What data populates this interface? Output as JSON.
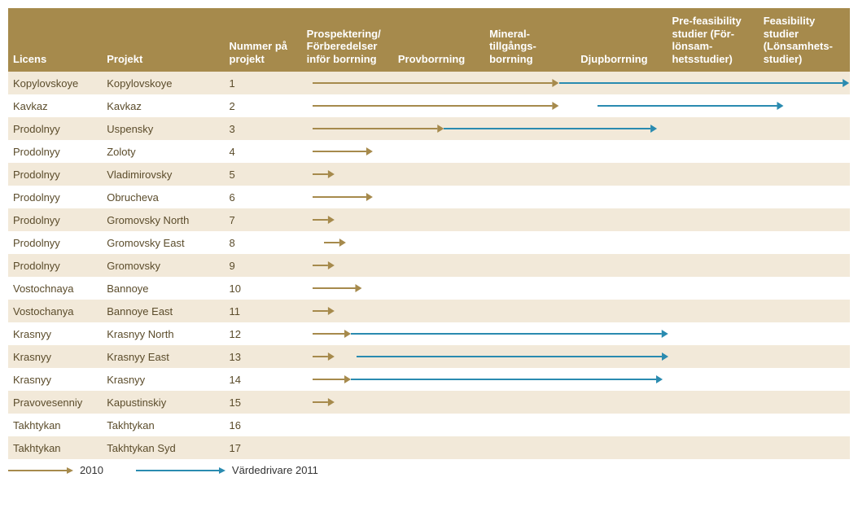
{
  "colors": {
    "header_bg": "#a68a4c",
    "header_text": "#ffffff",
    "row_even_bg": "#f2e9d9",
    "row_odd_bg": "#ffffff",
    "text": "#5b4c2b",
    "arrow_2010": "#a68a4c",
    "arrow_2011": "#2a8bb0"
  },
  "arrow_style": {
    "stroke_width": 2,
    "head_len": 8,
    "head_w": 5
  },
  "col_widths": {
    "licens": 115,
    "projekt": 150,
    "num": 95,
    "phase": 112
  },
  "phases_count": 6,
  "headers": {
    "licens": "Licens",
    "projekt": "Projekt",
    "num": "Nummer på projekt",
    "phases": [
      "Prospektering/\nFörberedelser inför borrning",
      "Provborrning",
      "Mineral-\ntillgångs-\nborrning",
      "Djupborrning",
      "Pre-feasibility studier\n(För-lönsam-\nhetsstudier)",
      "Feasibility studier\n(Lönsamhets-\nstudier)"
    ]
  },
  "legend": {
    "y2010": "2010",
    "y2011": "Värdedrivare 2011"
  },
  "rows": [
    {
      "licens": "Kopylovskoye",
      "projekt": "Kopylovskoye",
      "num": "1",
      "arrows": [
        {
          "year": "2010",
          "start": 0.02,
          "end": 0.47
        },
        {
          "year": "2011",
          "start": 0.47,
          "end": 1.0
        }
      ]
    },
    {
      "licens": "Kavkaz",
      "projekt": "Kavkaz",
      "num": "2",
      "arrows": [
        {
          "year": "2010",
          "start": 0.02,
          "end": 0.47
        },
        {
          "year": "2011",
          "start": 0.54,
          "end": 0.88
        }
      ]
    },
    {
      "licens": "Prodolnyy",
      "projekt": "Uspensky",
      "num": "3",
      "arrows": [
        {
          "year": "2010",
          "start": 0.02,
          "end": 0.26
        },
        {
          "year": "2011",
          "start": 0.26,
          "end": 0.65
        }
      ]
    },
    {
      "licens": "Prodolnyy",
      "projekt": "Zoloty",
      "num": "4",
      "arrows": [
        {
          "year": "2010",
          "start": 0.02,
          "end": 0.13
        }
      ]
    },
    {
      "licens": "Prodolnyy",
      "projekt": "Vladimirovsky",
      "num": "5",
      "arrows": [
        {
          "year": "2010",
          "start": 0.02,
          "end": 0.06
        }
      ]
    },
    {
      "licens": "Prodolnyy",
      "projekt": "Obrucheva",
      "num": "6",
      "arrows": [
        {
          "year": "2010",
          "start": 0.02,
          "end": 0.13
        }
      ]
    },
    {
      "licens": "Prodolnyy",
      "projekt": "Gromovsky North",
      "num": "7",
      "arrows": [
        {
          "year": "2010",
          "start": 0.02,
          "end": 0.06
        }
      ]
    },
    {
      "licens": "Prodolnyy",
      "projekt": "Gromovsky East",
      "num": "8",
      "arrows": [
        {
          "year": "2010",
          "start": 0.04,
          "end": 0.08
        }
      ]
    },
    {
      "licens": "Prodolnyy",
      "projekt": "Gromovsky",
      "num": "9",
      "arrows": [
        {
          "year": "2010",
          "start": 0.02,
          "end": 0.06
        }
      ]
    },
    {
      "licens": "Vostochnaya",
      "projekt": "Bannoye",
      "num": "10",
      "arrows": [
        {
          "year": "2010",
          "start": 0.02,
          "end": 0.11
        }
      ]
    },
    {
      "licens": "Vostochanya",
      "projekt": "Bannoye East",
      "num": "11",
      "arrows": [
        {
          "year": "2010",
          "start": 0.02,
          "end": 0.06
        }
      ]
    },
    {
      "licens": "Krasnyy",
      "projekt": "Krasnyy North",
      "num": "12",
      "arrows": [
        {
          "year": "2010",
          "start": 0.02,
          "end": 0.09
        },
        {
          "year": "2011",
          "start": 0.09,
          "end": 0.67
        }
      ]
    },
    {
      "licens": "Krasnyy",
      "projekt": "Krasnyy East",
      "num": "13",
      "arrows": [
        {
          "year": "2010",
          "start": 0.02,
          "end": 0.06
        },
        {
          "year": "2011",
          "start": 0.1,
          "end": 0.67
        }
      ]
    },
    {
      "licens": "Krasnyy",
      "projekt": "Krasnyy",
      "num": "14",
      "arrows": [
        {
          "year": "2010",
          "start": 0.02,
          "end": 0.09
        },
        {
          "year": "2011",
          "start": 0.09,
          "end": 0.66
        }
      ]
    },
    {
      "licens": "Pravovesenniy",
      "projekt": "Kapustinskiy",
      "num": "15",
      "arrows": [
        {
          "year": "2010",
          "start": 0.02,
          "end": 0.06
        }
      ]
    },
    {
      "licens": "Takhtykan",
      "projekt": "Takhtykan",
      "num": "16",
      "arrows": []
    },
    {
      "licens": "Takhtykan",
      "projekt": "Takhtykan Syd",
      "num": "17",
      "arrows": []
    }
  ]
}
